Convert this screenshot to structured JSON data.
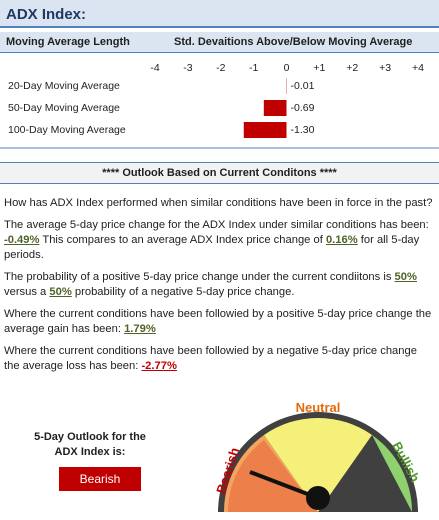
{
  "title": "ADX Index:",
  "header": {
    "left": "Moving Average Length",
    "right": "Std. Devaitions Above/Below Moving Average"
  },
  "chart_data": {
    "type": "bar",
    "categories": [
      "20-Day Moving Average",
      "50-Day Moving Average",
      "100-Day Moving Average"
    ],
    "values": [
      -0.01,
      -0.69,
      -1.3
    ],
    "value_labels": [
      "-0.01",
      "-0.69",
      "-1.30"
    ],
    "color": "#c00000",
    "xlim": [
      -4,
      4
    ],
    "xticks": [
      -4,
      -3,
      -2,
      -1,
      0,
      {
        "value": 1,
        "label": "+1"
      },
      {
        "value": 2,
        "label": "+2"
      },
      {
        "value": 3,
        "label": "+3"
      },
      {
        "value": 4,
        "label": "+4"
      }
    ]
  },
  "outlook_heading": "****  Outlook Based on Current Conditons  ****",
  "paragraphs": [
    [
      "How has ADX Index performed when similar conditions have been in force in the past?"
    ],
    [
      "The average 5-day price change for the ADX Index under similar conditions has been: ",
      "-0.49%",
      "  This compares to an average ADX Index price change of ",
      "0.16%",
      " for all 5-day periods."
    ],
    [
      "The probability of a positive 5-day price change under the current condiitons is ",
      "50%",
      " versus a ",
      "50%",
      " probability of a negative 5-day price change."
    ],
    [
      "Where the current conditions have been followied by a positive 5-day price change the average gain has been: ",
      "1.79%"
    ],
    [
      "Where the current conditions have been followied by a negative 5-day price change the average loss has been: ",
      "-2.77%"
    ]
  ],
  "outlook": {
    "label": "5-Day Outlook for the ADX Index is:",
    "result": "Bearish"
  },
  "gauge": {
    "left": "Bearish",
    "middle": "Neutral",
    "right": "Bullish"
  }
}
